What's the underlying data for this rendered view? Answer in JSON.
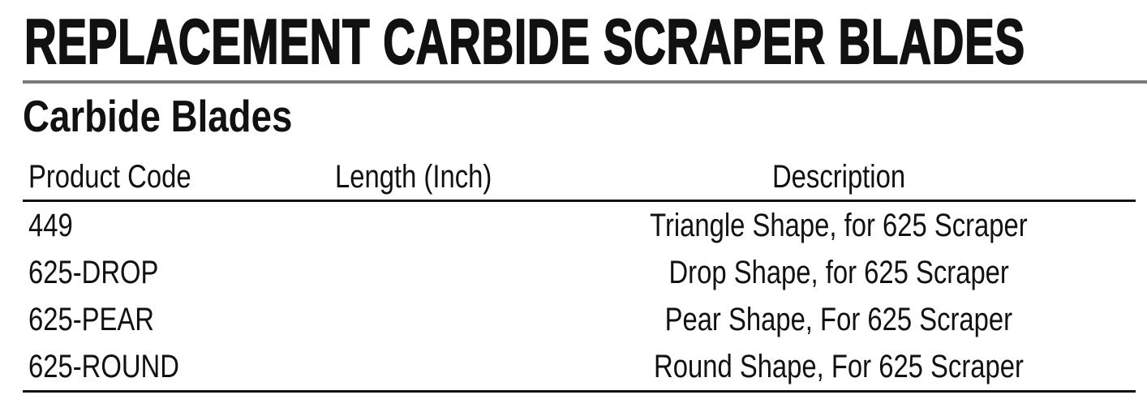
{
  "title": "REPLACEMENT CARBIDE SCRAPER BLADES",
  "section": "Carbide Blades",
  "table": {
    "headers": [
      "Product Code",
      "Length (Inch)",
      "Description"
    ],
    "rows": [
      {
        "code": "449",
        "length": "",
        "description": "Triangle Shape, for 625 Scraper"
      },
      {
        "code": "625-DROP",
        "length": "",
        "description": "Drop Shape, for 625 Scraper"
      },
      {
        "code": "625-PEAR",
        "length": "",
        "description": "Pear Shape, For 625 Scraper"
      },
      {
        "code": "625-ROUND",
        "length": "",
        "description": "Round Shape, For 625 Scraper"
      }
    ]
  }
}
